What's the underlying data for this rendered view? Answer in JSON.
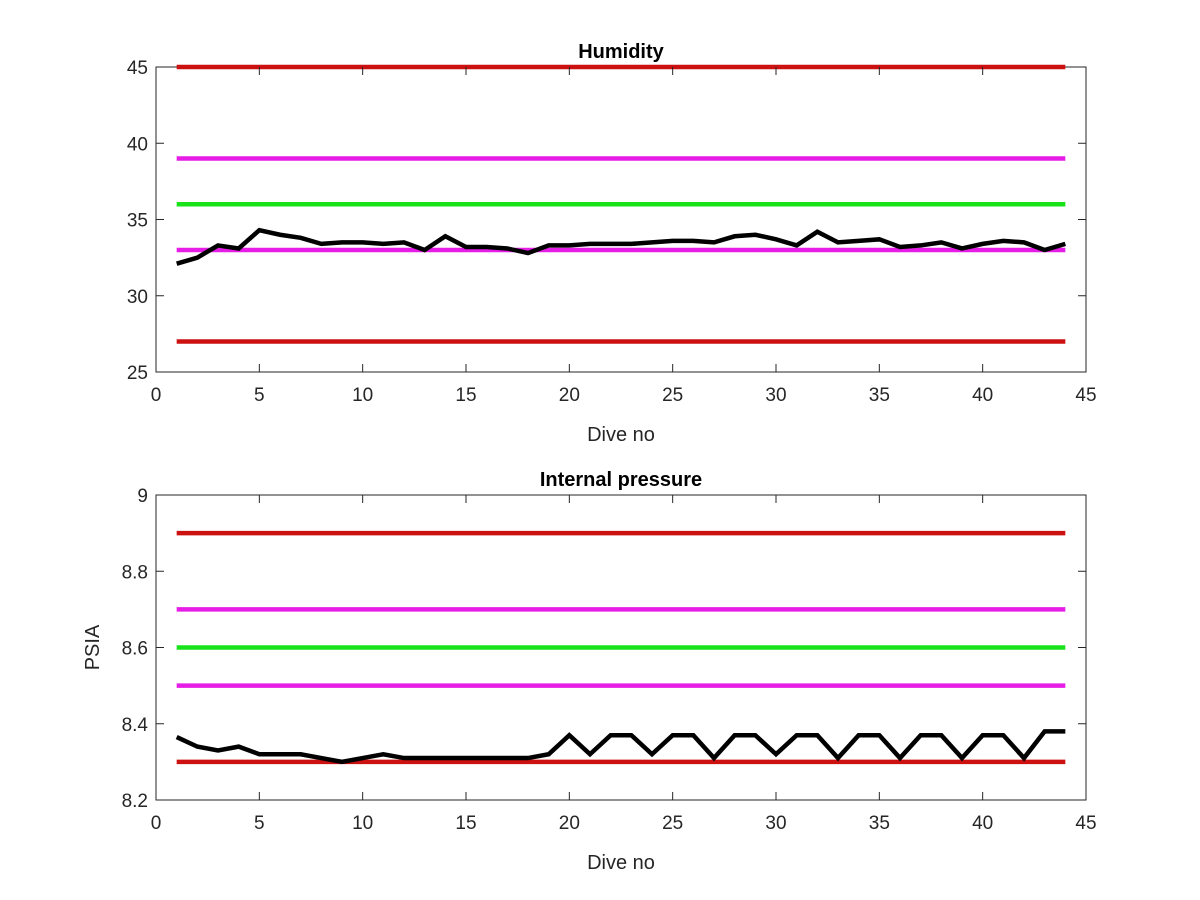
{
  "chart_data": [
    {
      "type": "line",
      "title": "Humidity",
      "xlabel": "Dive no",
      "ylabel": "",
      "xlim": [
        0,
        45
      ],
      "ylim": [
        25,
        45
      ],
      "xticks": [
        0,
        5,
        10,
        15,
        20,
        25,
        30,
        35,
        40,
        45
      ],
      "yticks": [
        25,
        30,
        35,
        40,
        45
      ],
      "grid": false,
      "colors": {
        "red": "#cc1111",
        "magenta": "#e61de6",
        "green": "#18e218",
        "black": "#000000"
      },
      "reference_lines": [
        {
          "y": 45,
          "color": "red",
          "x": [
            1,
            44
          ]
        },
        {
          "y": 39,
          "color": "magenta",
          "x": [
            1,
            44
          ]
        },
        {
          "y": 36,
          "color": "green",
          "x": [
            1,
            44
          ]
        },
        {
          "y": 33,
          "color": "magenta",
          "x": [
            1,
            44
          ]
        },
        {
          "y": 27,
          "color": "red",
          "x": [
            1,
            44
          ]
        }
      ],
      "series": [
        {
          "color": "black",
          "x": [
            1,
            2,
            3,
            4,
            5,
            6,
            7,
            8,
            9,
            10,
            11,
            12,
            13,
            14,
            15,
            16,
            17,
            18,
            19,
            20,
            21,
            22,
            23,
            24,
            25,
            26,
            27,
            28,
            29,
            30,
            31,
            32,
            33,
            34,
            35,
            36,
            37,
            38,
            39,
            40,
            41,
            42,
            43,
            44
          ],
          "values": [
            32.1,
            32.5,
            33.3,
            33.1,
            34.3,
            34.0,
            33.8,
            33.4,
            33.5,
            33.5,
            33.4,
            33.5,
            33.0,
            33.9,
            33.2,
            33.2,
            33.1,
            32.8,
            33.3,
            33.3,
            33.4,
            33.4,
            33.4,
            33.5,
            33.6,
            33.6,
            33.5,
            33.9,
            34.0,
            33.7,
            33.3,
            34.2,
            33.5,
            33.6,
            33.7,
            33.2,
            33.3,
            33.5,
            33.1,
            33.4,
            33.6,
            33.5,
            33.0,
            33.4
          ]
        }
      ]
    },
    {
      "type": "line",
      "title": "Internal pressure",
      "xlabel": "Dive no",
      "ylabel": "PSIA",
      "xlim": [
        0,
        45
      ],
      "ylim": [
        8.2,
        9
      ],
      "xticks": [
        0,
        5,
        10,
        15,
        20,
        25,
        30,
        35,
        40,
        45
      ],
      "yticks": [
        8.2,
        8.4,
        8.6,
        8.8,
        9
      ],
      "grid": false,
      "colors": {
        "red": "#cc1111",
        "magenta": "#e61de6",
        "green": "#18e218",
        "black": "#000000"
      },
      "reference_lines": [
        {
          "y": 8.9,
          "color": "red",
          "x": [
            1,
            44
          ]
        },
        {
          "y": 8.7,
          "color": "magenta",
          "x": [
            1,
            44
          ]
        },
        {
          "y": 8.6,
          "color": "green",
          "x": [
            1,
            44
          ]
        },
        {
          "y": 8.5,
          "color": "magenta",
          "x": [
            1,
            44
          ]
        },
        {
          "y": 8.3,
          "color": "red",
          "x": [
            1,
            44
          ]
        }
      ],
      "series": [
        {
          "color": "black",
          "x": [
            1,
            2,
            3,
            4,
            5,
            6,
            7,
            8,
            9,
            10,
            11,
            12,
            13,
            14,
            15,
            16,
            17,
            18,
            19,
            20,
            21,
            22,
            23,
            24,
            25,
            26,
            27,
            28,
            29,
            30,
            31,
            32,
            33,
            34,
            35,
            36,
            37,
            38,
            39,
            40,
            41,
            42,
            43,
            44
          ],
          "values": [
            8.365,
            8.34,
            8.33,
            8.34,
            8.32,
            8.32,
            8.32,
            8.31,
            8.3,
            8.31,
            8.32,
            8.31,
            8.31,
            8.31,
            8.31,
            8.31,
            8.31,
            8.31,
            8.32,
            8.37,
            8.32,
            8.37,
            8.37,
            8.32,
            8.37,
            8.37,
            8.31,
            8.37,
            8.37,
            8.32,
            8.37,
            8.37,
            8.31,
            8.37,
            8.37,
            8.31,
            8.37,
            8.37,
            8.31,
            8.37,
            8.37,
            8.31,
            8.38,
            8.38
          ]
        }
      ]
    }
  ]
}
